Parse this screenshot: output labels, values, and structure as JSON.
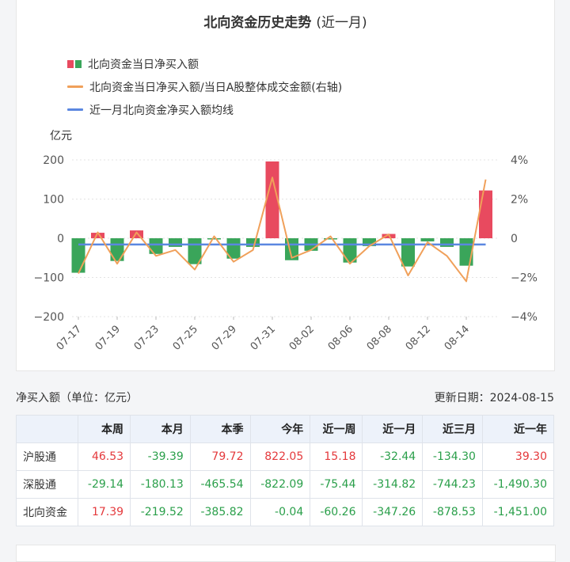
{
  "chart": {
    "title_main": "北向资金历史走势",
    "title_paren": "(近一月)",
    "legend": [
      "北向资金当日净买入额",
      "北向资金当日净买入额/当日A股整体成交金额(右轴)",
      "近一月北向资金净买入额均线"
    ],
    "y_unit": "亿元",
    "colors": {
      "positive": "#e84a5f",
      "negative": "#3aa55a",
      "ratio_line": "#f0a05a",
      "avg_line": "#5b87e0"
    }
  },
  "chart_data": {
    "type": "bar",
    "x": [
      "07-17",
      "07-18",
      "07-19",
      "07-22",
      "07-23",
      "07-24",
      "07-25",
      "07-26",
      "07-29",
      "07-30",
      "07-31",
      "08-01",
      "08-02",
      "08-05",
      "08-06",
      "08-07",
      "08-08",
      "08-09",
      "08-12",
      "08-13",
      "08-14",
      "08-15"
    ],
    "x_tick_labels": [
      "07-17",
      "07-19",
      "07-23",
      "07-25",
      "07-29",
      "07-31",
      "08-02",
      "08-06",
      "08-08",
      "08-12",
      "08-14"
    ],
    "series": [
      {
        "name": "北向资金当日净买入额",
        "axis": "left",
        "type": "bar",
        "values": [
          -88,
          14,
          -58,
          20,
          -40,
          -22,
          -66,
          -3,
          -52,
          -22,
          196,
          -56,
          -32,
          -3,
          -62,
          -20,
          11,
          -72,
          -8,
          -22,
          -70,
          122
        ]
      },
      {
        "name": "北向资金当日净买入额/当日A股整体成交金额(右轴)",
        "axis": "right",
        "type": "line",
        "values": [
          -1.8,
          0.3,
          -1.3,
          0.3,
          -0.9,
          -0.6,
          -1.6,
          0.1,
          -1.2,
          -0.6,
          3.1,
          -1.0,
          -0.6,
          0.1,
          -1.3,
          -0.4,
          0.2,
          -1.9,
          -0.2,
          -0.9,
          -2.2,
          3.0
        ]
      },
      {
        "name": "近一月北向资金净买入额均线",
        "axis": "left",
        "type": "line",
        "values": [
          -15.8,
          -15.8,
          -15.8,
          -15.8,
          -15.8,
          -15.8,
          -15.8,
          -15.8,
          -15.8,
          -15.8,
          -15.8,
          -15.8,
          -15.8,
          -15.8,
          -15.8,
          -15.8,
          -15.8,
          -15.8,
          -15.8,
          -15.8,
          -15.8,
          -15.8
        ]
      }
    ],
    "ylim": [
      -200,
      200
    ],
    "y_ticks": [
      "200",
      "100",
      "0",
      "−100",
      "−200"
    ],
    "y2lim": [
      -4,
      4
    ],
    "y2_ticks": [
      "4%",
      "2%",
      "0",
      "−2%",
      "−4%"
    ],
    "grid": true
  },
  "stats": {
    "label": "净买入额（单位：亿元）",
    "update": "更新日期：2024-08-15",
    "columns": [
      "",
      "本周",
      "本月",
      "本季",
      "今年",
      "近一周",
      "近一月",
      "近三月",
      "近一年"
    ],
    "rows": [
      {
        "name": "沪股通",
        "values": [
          "46.53",
          "-39.39",
          "79.72",
          "822.05",
          "15.18",
          "-32.44",
          "-134.30",
          "39.30"
        ]
      },
      {
        "name": "深股通",
        "values": [
          "-29.14",
          "-180.13",
          "-465.54",
          "-822.09",
          "-75.44",
          "-314.82",
          "-744.23",
          "-1,490.30"
        ]
      },
      {
        "name": "北向资金",
        "values": [
          "17.39",
          "-219.52",
          "-385.82",
          "-0.04",
          "-60.26",
          "-347.26",
          "-878.53",
          "-1,451.00"
        ]
      }
    ]
  }
}
